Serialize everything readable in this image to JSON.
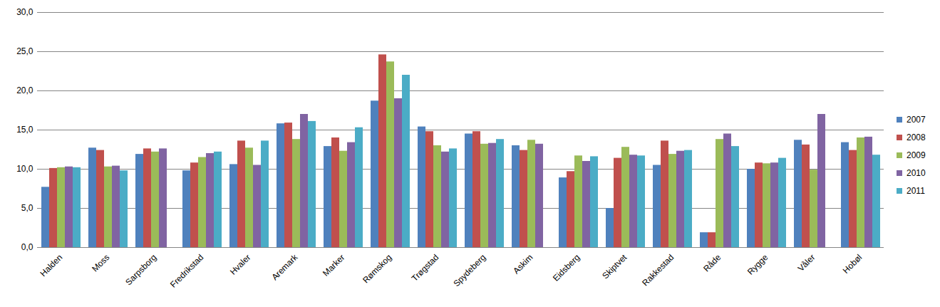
{
  "chart_data": {
    "type": "bar",
    "categories": [
      "Halden",
      "Moss",
      "Sarpsborg",
      "Fredrikstad",
      "Hvaler",
      "Aremark",
      "Marker",
      "Rømskog",
      "Trøgstad",
      "Spydeberg",
      "Askim",
      "Eidsberg",
      "Skiptvet",
      "Rakkestad",
      "Råde",
      "Rygge",
      "Våler",
      "Hobøl"
    ],
    "series": [
      {
        "name": "2007",
        "color": "#4f81bd",
        "values": [
          7.7,
          12.7,
          11.9,
          9.8,
          10.6,
          15.8,
          12.9,
          18.7,
          15.4,
          14.5,
          13.0,
          8.9,
          5.0,
          10.5,
          1.9,
          10.0,
          13.7,
          13.4
        ]
      },
      {
        "name": "2008",
        "color": "#c0504d",
        "values": [
          10.1,
          12.4,
          12.6,
          10.8,
          13.6,
          15.9,
          14.0,
          24.6,
          14.8,
          14.8,
          12.4,
          9.7,
          11.4,
          13.6,
          1.9,
          10.8,
          13.1,
          12.4
        ]
      },
      {
        "name": "2009",
        "color": "#9bbb59",
        "values": [
          10.2,
          10.3,
          12.2,
          11.5,
          12.7,
          13.8,
          12.3,
          23.7,
          13.0,
          13.2,
          13.7,
          11.7,
          12.8,
          11.9,
          13.8,
          10.7,
          9.9,
          14.0
        ]
      },
      {
        "name": "2010",
        "color": "#8064a2",
        "values": [
          10.3,
          10.4,
          12.6,
          12.0,
          10.5,
          17.0,
          13.4,
          19.0,
          12.2,
          13.3,
          13.2,
          11.0,
          11.8,
          12.3,
          14.5,
          10.8,
          17.0,
          14.1
        ]
      },
      {
        "name": "2011",
        "color": "#4bacc6",
        "values": [
          10.2,
          9.8,
          null,
          12.2,
          13.6,
          16.1,
          15.3,
          22.0,
          12.6,
          13.8,
          null,
          11.6,
          11.7,
          12.4,
          12.9,
          11.4,
          null,
          11.8
        ]
      }
    ],
    "ylim": [
      0,
      30
    ],
    "yticks": [
      {
        "value": 0,
        "label": "0,0"
      },
      {
        "value": 5,
        "label": "5,0"
      },
      {
        "value": 10,
        "label": "10,0"
      },
      {
        "value": 15,
        "label": "15,0"
      },
      {
        "value": 20,
        "label": "20,0"
      },
      {
        "value": 25,
        "label": "25,0"
      },
      {
        "value": 30,
        "label": "30,0"
      }
    ],
    "grid": true,
    "legend": "right"
  }
}
